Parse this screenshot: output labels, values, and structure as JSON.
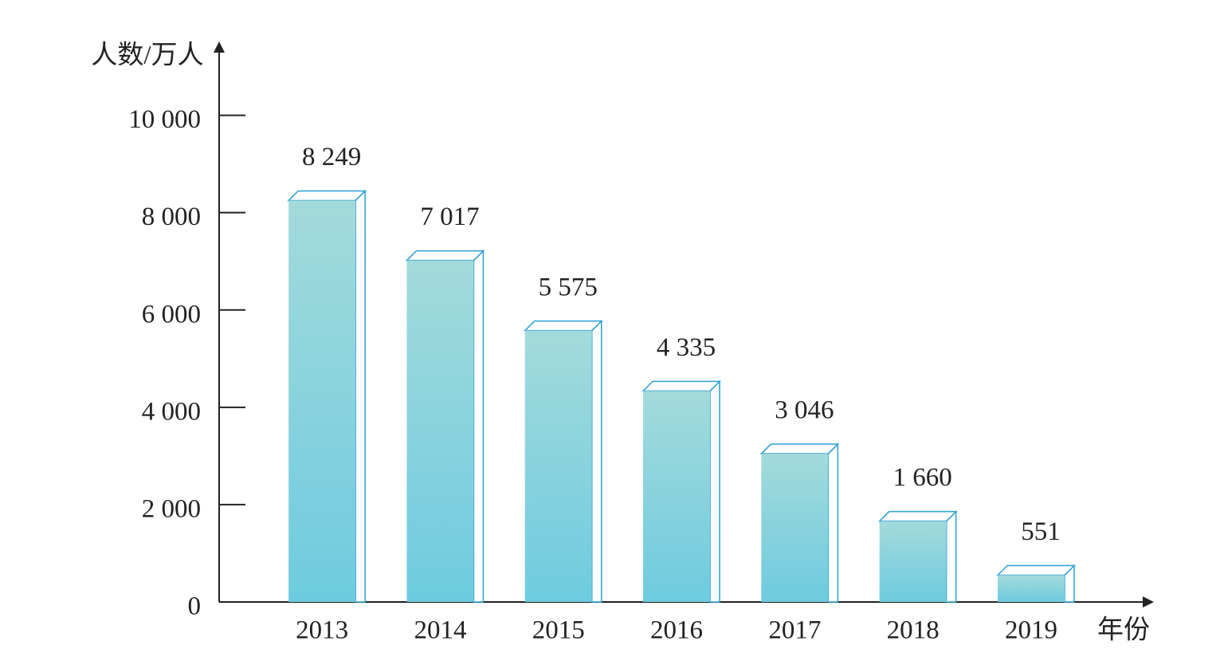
{
  "chart_data": {
    "type": "bar",
    "y_label": "人数/万人",
    "x_label": "年份",
    "categories": [
      "2013",
      "2014",
      "2015",
      "2016",
      "2017",
      "2018",
      "2019"
    ],
    "values": [
      8249,
      7017,
      5575,
      4335,
      3046,
      1660,
      551
    ],
    "value_labels": [
      "8 249",
      "7 017",
      "5 575",
      "4 335",
      "3 046",
      "1 660",
      "551"
    ],
    "color": "#6ecbdc",
    "ylim": [
      0,
      11500
    ],
    "yticks": [
      0,
      {
        "value": 2000,
        "label": "2 000"
      },
      {
        "value": 4000,
        "label": "4 000"
      },
      {
        "value": 6000,
        "label": "6 000"
      },
      {
        "value": 8000,
        "label": "8 000"
      },
      {
        "value": 10000,
        "label": "10 000"
      }
    ],
    "grid": false
  }
}
